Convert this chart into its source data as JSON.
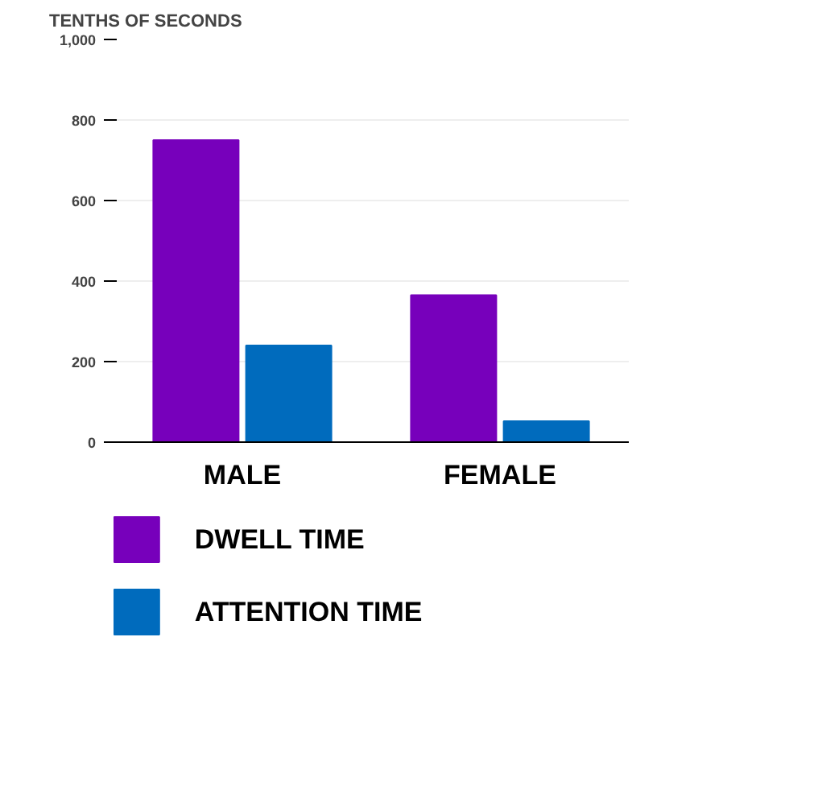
{
  "chart_data": {
    "type": "bar",
    "ylabel": "TENTHS OF SECONDS",
    "categories": [
      "MALE",
      "FEMALE"
    ],
    "series": [
      {
        "name": "DWELL TIME",
        "color": "#7700bb",
        "values": [
          750,
          365
        ]
      },
      {
        "name": "ATTENTION TIME",
        "color": "#006bbd",
        "values": [
          240,
          52
        ]
      }
    ],
    "ylim": [
      0,
      1000
    ],
    "yticks": [
      0,
      200,
      400,
      600,
      800,
      {
        "value": 1000,
        "label": "1,000"
      }
    ],
    "grid": "y",
    "legend": "bottom left"
  }
}
